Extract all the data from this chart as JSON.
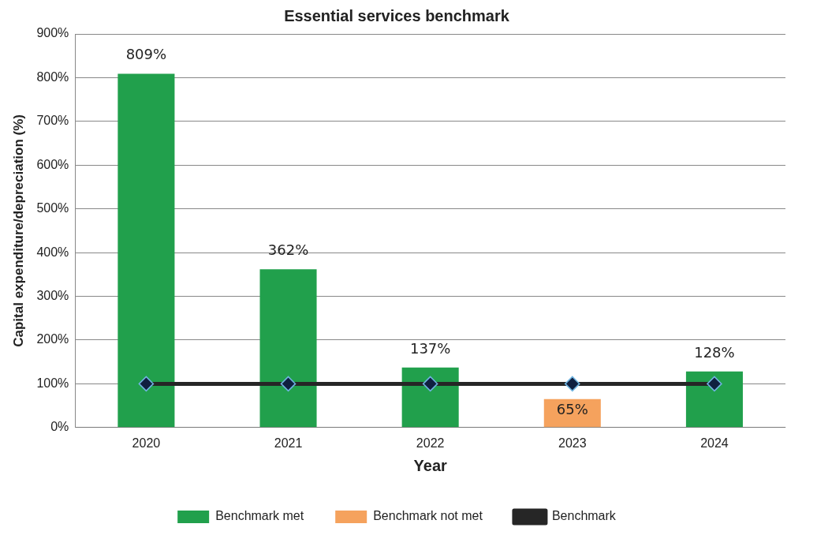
{
  "chart_data": {
    "type": "bar",
    "title": "Essential services benchmark",
    "xlabel": "Year",
    "ylabel": "Capital expenditure/depreciation (%)",
    "categories": [
      "2020",
      "2021",
      "2022",
      "2023",
      "2024"
    ],
    "stacked": true,
    "series": [
      {
        "name": "Benchmark met",
        "color": "#21a04c",
        "values": [
          809,
          362,
          137,
          null,
          128
        ],
        "value_labels": [
          "809%",
          "362%",
          "137%",
          null,
          "128%"
        ]
      },
      {
        "name": "Benchmark not met",
        "color": "#f5a25d",
        "values": [
          null,
          null,
          null,
          65,
          null
        ],
        "value_labels": [
          null,
          null,
          null,
          "65%",
          null
        ]
      },
      {
        "name": "Benchmark",
        "type": "line",
        "color": "#262626",
        "values": [
          100,
          100,
          100,
          100,
          100
        ],
        "marker": "diamond",
        "line_style": "solid"
      }
    ],
    "ylim": [
      0,
      900
    ],
    "yticks": [
      {
        "value": 0,
        "label": "0%"
      },
      {
        "value": 100,
        "label": "100%"
      },
      {
        "value": 200,
        "label": "200%"
      },
      {
        "value": 300,
        "label": "300%"
      },
      {
        "value": 400,
        "label": "400%"
      },
      {
        "value": 500,
        "label": "500%"
      },
      {
        "value": 600,
        "label": "600%"
      },
      {
        "value": 700,
        "label": "700%"
      },
      {
        "value": 800,
        "label": "800%"
      },
      {
        "value": 900,
        "label": "900%"
      }
    ],
    "grid": "y",
    "legend": "bottom"
  }
}
